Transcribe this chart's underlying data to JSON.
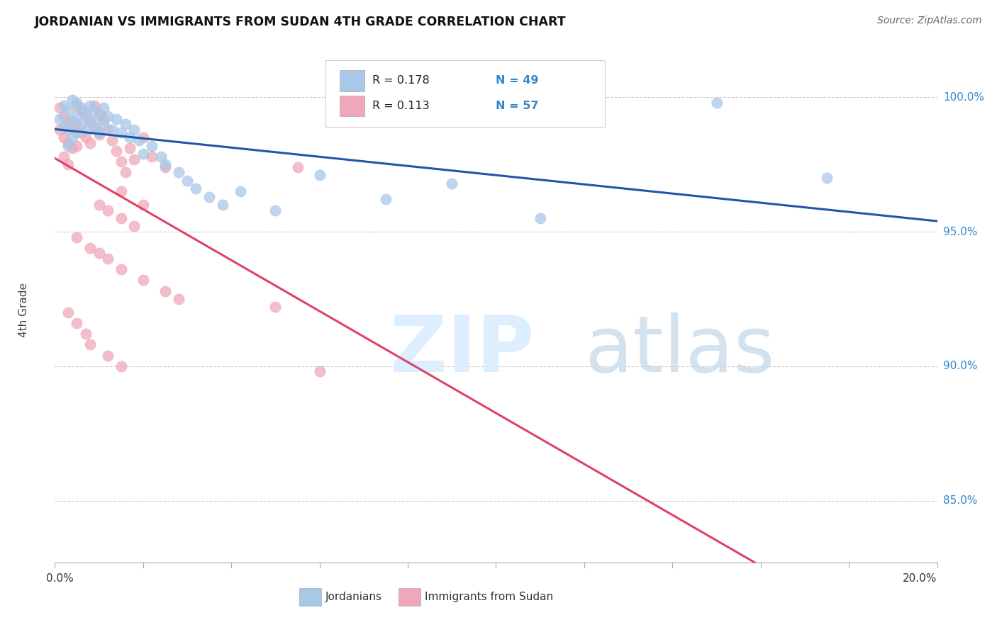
{
  "title": "JORDANIAN VS IMMIGRANTS FROM SUDAN 4TH GRADE CORRELATION CHART",
  "source": "Source: ZipAtlas.com",
  "ylabel": "4th Grade",
  "ylabel_right_ticks": [
    0.85,
    0.9,
    0.95,
    1.0
  ],
  "ylabel_right_labels": [
    "85.0%",
    "90.0%",
    "95.0%",
    "100.0%"
  ],
  "xlim": [
    0.0,
    0.2
  ],
  "ylim": [
    0.827,
    1.015
  ],
  "color_jordanian": "#a8c8e8",
  "color_sudan": "#f0a8b8",
  "color_line_jordanian": "#2255aa",
  "color_line_sudan": "#dd4466",
  "scatter_jordanian_x": [
    0.001,
    0.002,
    0.002,
    0.003,
    0.003,
    0.003,
    0.004,
    0.004,
    0.004,
    0.005,
    0.005,
    0.005,
    0.006,
    0.006,
    0.007,
    0.007,
    0.008,
    0.008,
    0.009,
    0.009,
    0.01,
    0.01,
    0.011,
    0.011,
    0.012,
    0.013,
    0.014,
    0.015,
    0.016,
    0.017,
    0.018,
    0.019,
    0.02,
    0.022,
    0.024,
    0.025,
    0.028,
    0.03,
    0.032,
    0.035,
    0.038,
    0.042,
    0.05,
    0.06,
    0.075,
    0.09,
    0.11,
    0.15,
    0.175
  ],
  "scatter_jordanian_y": [
    0.992,
    0.997,
    0.989,
    0.995,
    0.988,
    0.982,
    0.999,
    0.991,
    0.985,
    0.998,
    0.993,
    0.987,
    0.996,
    0.99,
    0.994,
    0.988,
    0.997,
    0.991,
    0.995,
    0.989,
    0.993,
    0.987,
    0.996,
    0.99,
    0.993,
    0.988,
    0.992,
    0.987,
    0.99,
    0.985,
    0.988,
    0.984,
    0.979,
    0.982,
    0.978,
    0.975,
    0.972,
    0.969,
    0.966,
    0.963,
    0.96,
    0.965,
    0.958,
    0.971,
    0.962,
    0.968,
    0.955,
    0.998,
    0.97
  ],
  "scatter_sudan_x": [
    0.001,
    0.001,
    0.002,
    0.002,
    0.002,
    0.003,
    0.003,
    0.003,
    0.004,
    0.004,
    0.005,
    0.005,
    0.005,
    0.006,
    0.006,
    0.007,
    0.007,
    0.008,
    0.008,
    0.009,
    0.009,
    0.01,
    0.01,
    0.011,
    0.012,
    0.013,
    0.014,
    0.015,
    0.016,
    0.017,
    0.018,
    0.02,
    0.022,
    0.025,
    0.015,
    0.01,
    0.012,
    0.015,
    0.018,
    0.02,
    0.005,
    0.008,
    0.01,
    0.012,
    0.015,
    0.02,
    0.025,
    0.028,
    0.05,
    0.055,
    0.003,
    0.005,
    0.007,
    0.008,
    0.012,
    0.015,
    0.06
  ],
  "scatter_sudan_y": [
    0.996,
    0.988,
    0.993,
    0.985,
    0.978,
    0.991,
    0.983,
    0.975,
    0.989,
    0.981,
    0.997,
    0.99,
    0.982,
    0.995,
    0.987,
    0.993,
    0.985,
    0.991,
    0.983,
    0.997,
    0.989,
    0.994,
    0.986,
    0.992,
    0.988,
    0.984,
    0.98,
    0.976,
    0.972,
    0.981,
    0.977,
    0.985,
    0.978,
    0.974,
    0.965,
    0.96,
    0.958,
    0.955,
    0.952,
    0.96,
    0.948,
    0.944,
    0.942,
    0.94,
    0.936,
    0.932,
    0.928,
    0.925,
    0.922,
    0.974,
    0.92,
    0.916,
    0.912,
    0.908,
    0.904,
    0.9,
    0.898
  ]
}
